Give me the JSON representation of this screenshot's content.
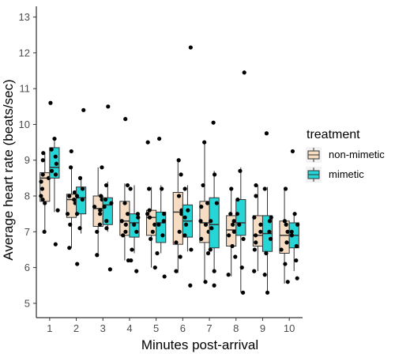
{
  "chart_data": {
    "type": "boxplot",
    "xlabel": "Minutes post-arrival",
    "ylabel": "Average heart rate (beats/sec)",
    "categories": [
      "1",
      "2",
      "3",
      "4",
      "5",
      "6",
      "7",
      "8",
      "9",
      "10"
    ],
    "ylim": [
      4.6,
      13.3
    ],
    "yticks": [
      "5",
      "6",
      "7",
      "8",
      "9",
      "10",
      "11",
      "12",
      "13"
    ],
    "grid": false,
    "legend": {
      "title": "treatment",
      "position": "right"
    },
    "series": [
      {
        "name": "non-mimetic",
        "color": "#f5dcc2",
        "boxes": [
          {
            "q1": 7.85,
            "median": 8.5,
            "q3": 8.65,
            "lower": 7.0,
            "upper": 9.2,
            "points": [
              7.0,
              7.8,
              7.9,
              8.0,
              8.2,
              8.4,
              8.5,
              8.6,
              9.0,
              9.2
            ]
          },
          {
            "q1": 7.4,
            "median": 7.9,
            "q3": 8.05,
            "lower": 6.55,
            "upper": 8.8,
            "points": [
              6.55,
              7.2,
              7.5,
              7.8,
              7.9,
              8.0,
              8.1,
              8.8,
              9.25
            ]
          },
          {
            "q1": 7.15,
            "median": 7.65,
            "q3": 8.0,
            "lower": 6.3,
            "upper": 8.8,
            "points": [
              6.35,
              7.0,
              7.2,
              7.5,
              7.6,
              7.7,
              7.9,
              8.0,
              8.8
            ]
          },
          {
            "q1": 6.9,
            "median": 7.3,
            "q3": 7.85,
            "lower": 6.2,
            "upper": 8.35,
            "points": [
              6.2,
              6.9,
              7.0,
              7.2,
              7.3,
              7.5,
              7.8,
              8.3,
              10.15
            ]
          },
          {
            "q1": 6.9,
            "median": 7.4,
            "q3": 7.6,
            "lower": 6.0,
            "upper": 8.25,
            "points": [
              6.0,
              6.8,
              7.0,
              7.2,
              7.4,
              7.5,
              7.6,
              8.2,
              9.5
            ]
          },
          {
            "q1": 6.65,
            "median": 7.55,
            "q3": 8.1,
            "lower": 5.85,
            "upper": 9.05,
            "points": [
              5.9,
              6.3,
              6.7,
              7.0,
              7.5,
              7.6,
              8.0,
              8.6,
              9.0
            ]
          },
          {
            "q1": 6.7,
            "median": 7.25,
            "q3": 7.85,
            "lower": 5.6,
            "upper": 9.55,
            "points": [
              5.6,
              6.4,
              6.8,
              7.0,
              7.2,
              7.3,
              7.7,
              7.8,
              8.3,
              9.5
            ]
          },
          {
            "q1": 6.6,
            "median": 7.05,
            "q3": 7.45,
            "lower": 5.75,
            "upper": 8.25,
            "points": [
              5.8,
              6.3,
              6.6,
              6.9,
              7.0,
              7.2,
              7.3,
              7.5,
              8.2
            ]
          },
          {
            "q1": 6.6,
            "median": 6.9,
            "q3": 7.45,
            "lower": 5.9,
            "upper": 8.3,
            "points": [
              5.9,
              6.5,
              6.7,
              6.9,
              7.0,
              7.2,
              7.4,
              8.0,
              8.3
            ]
          },
          {
            "q1": 6.4,
            "median": 6.9,
            "q3": 7.3,
            "lower": 5.55,
            "upper": 8.25,
            "points": [
              5.6,
              6.1,
              6.5,
              6.7,
              7.0,
              7.2,
              7.3,
              8.2
            ]
          }
        ]
      },
      {
        "name": "mimetic",
        "color": "#26d5d5",
        "boxes": [
          {
            "q1": 8.5,
            "median": 8.8,
            "q3": 9.35,
            "lower": 7.55,
            "upper": 9.65,
            "points": [
              6.65,
              7.6,
              8.6,
              8.7,
              8.9,
              9.1,
              9.3,
              9.6,
              10.6
            ]
          },
          {
            "q1": 7.5,
            "median": 7.95,
            "q3": 8.25,
            "lower": 6.95,
            "upper": 8.5,
            "points": [
              6.1,
              7.1,
              7.5,
              7.9,
              8.0,
              8.2,
              8.5,
              10.4
            ]
          },
          {
            "q1": 7.2,
            "median": 7.75,
            "q3": 7.95,
            "lower": 7.0,
            "upper": 8.4,
            "points": [
              5.95,
              7.1,
              7.3,
              7.7,
              7.8,
              7.9,
              8.3,
              10.5
            ]
          },
          {
            "q1": 6.85,
            "median": 7.25,
            "q3": 7.5,
            "lower": 6.4,
            "upper": 8.3,
            "points": [
              5.9,
              6.2,
              6.5,
              7.0,
              7.2,
              7.4,
              7.5,
              8.2
            ]
          },
          {
            "q1": 6.7,
            "median": 7.25,
            "q3": 7.55,
            "lower": 6.4,
            "upper": 8.3,
            "points": [
              5.75,
              6.4,
              6.9,
              7.2,
              7.3,
              7.5,
              8.2,
              9.6
            ]
          },
          {
            "q1": 6.85,
            "median": 7.3,
            "q3": 7.75,
            "lower": 6.45,
            "upper": 8.3,
            "points": [
              5.5,
              6.5,
              6.9,
              7.2,
              7.4,
              7.6,
              8.2,
              12.15
            ]
          },
          {
            "q1": 6.55,
            "median": 7.2,
            "q3": 7.95,
            "lower": 5.85,
            "upper": 8.7,
            "points": [
              5.5,
              5.9,
              6.5,
              7.1,
              7.3,
              7.8,
              8.6,
              10.05
            ]
          },
          {
            "q1": 6.9,
            "median": 7.25,
            "q3": 7.9,
            "lower": 5.3,
            "upper": 8.8,
            "points": [
              5.3,
              6.0,
              6.8,
              7.2,
              7.5,
              7.9,
              8.7,
              11.45
            ]
          },
          {
            "q1": 6.45,
            "median": 6.95,
            "q3": 7.45,
            "lower": 5.3,
            "upper": 8.25,
            "points": [
              5.3,
              5.8,
              6.4,
              6.8,
              7.0,
              7.3,
              7.4,
              8.2,
              9.75
            ]
          },
          {
            "q1": 6.55,
            "median": 6.9,
            "q3": 7.25,
            "lower": 5.9,
            "upper": 7.55,
            "points": [
              5.7,
              6.2,
              6.6,
              6.9,
              7.0,
              7.2,
              7.5,
              9.25
            ]
          }
        ]
      }
    ]
  }
}
